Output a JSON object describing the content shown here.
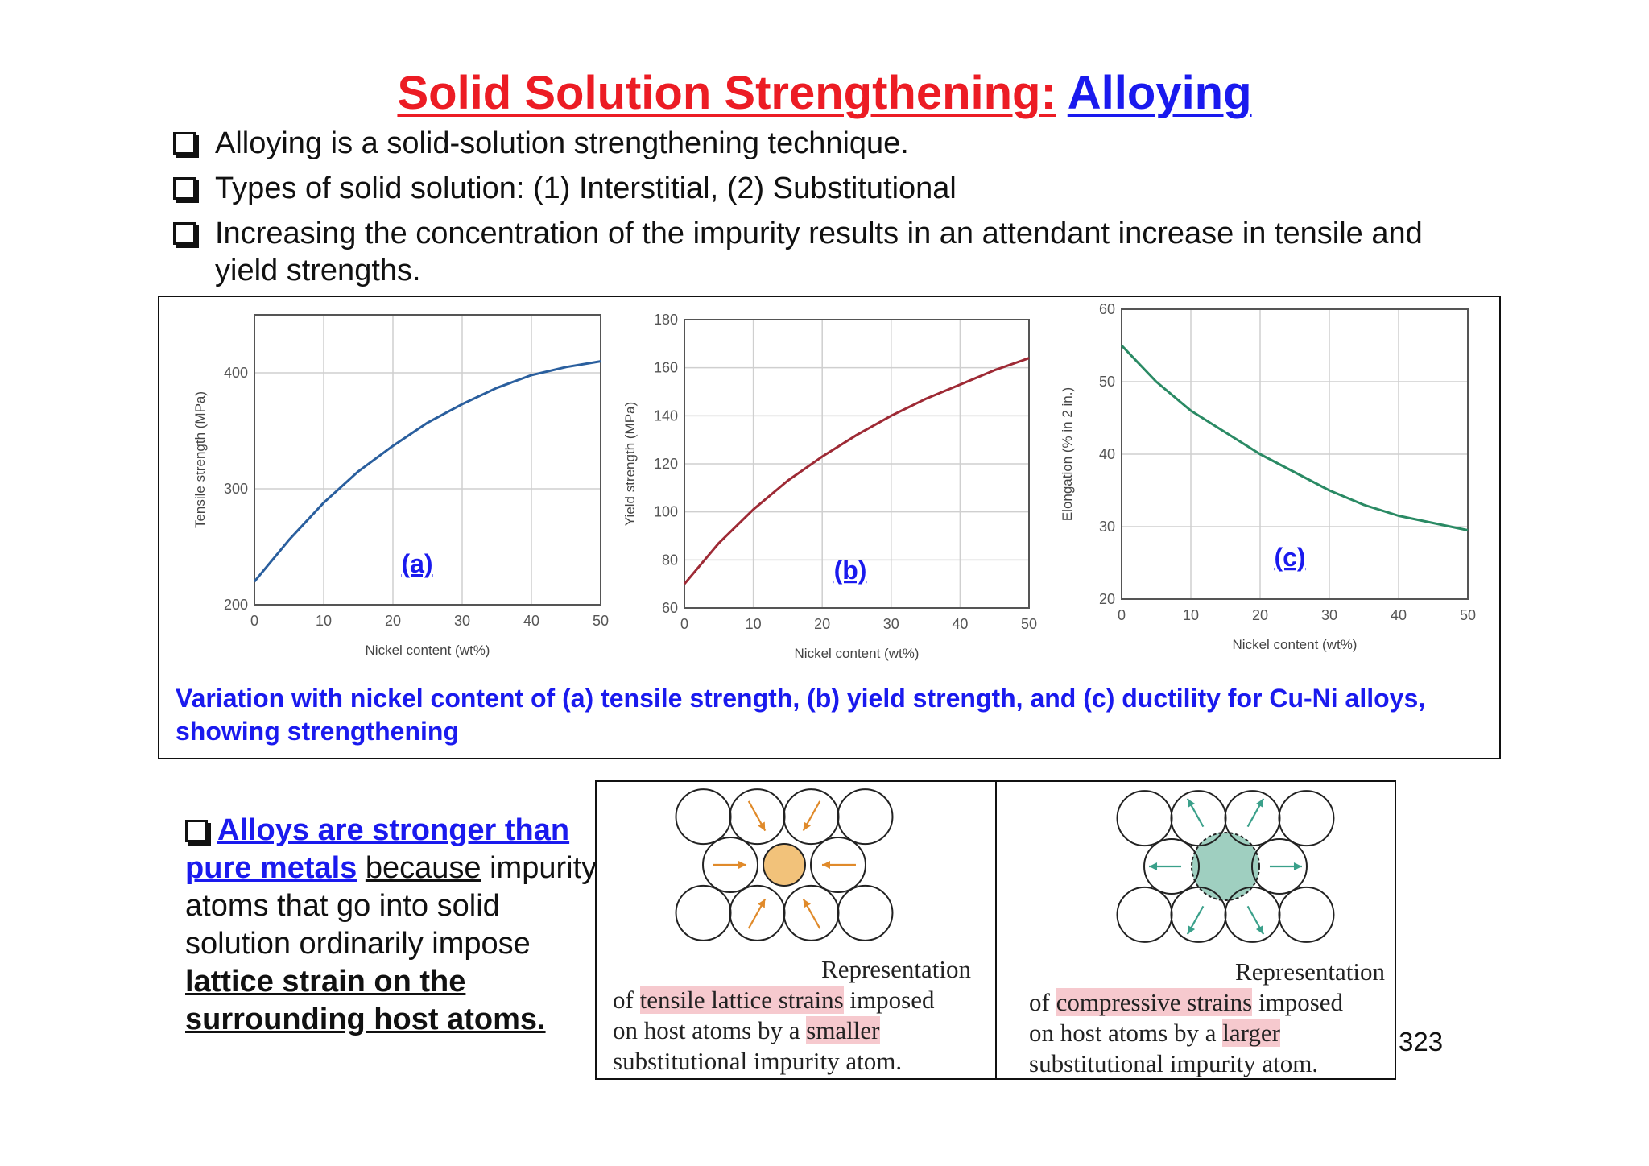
{
  "title": {
    "part1": "Solid Solution Strengthening:",
    "part2": "Alloying"
  },
  "bullets": [
    "Alloying is a solid-solution strengthening technique.",
    "Types of solid solution: (1) Interstitial, (2) Substitutional",
    "Increasing the concentration of the impurity results in an attendant increase in tensile and yield strengths."
  ],
  "figure": {
    "caption": "Variation with nickel content of (a) tensile strength, (b) yield strength, and (c) ductility for Cu-Ni alloys, showing strengthening"
  },
  "chart_data": [
    {
      "type": "line",
      "panel_label": "(a)",
      "xlabel": "Nickel content (wt%)",
      "ylabel": "Tensile strength (MPa)",
      "xlim": [
        0,
        50
      ],
      "ylim": [
        200,
        450
      ],
      "xticks": [
        0,
        10,
        20,
        30,
        40,
        50
      ],
      "yticks": [
        200,
        300,
        400
      ],
      "color": "#2a5f9e",
      "x": [
        0,
        5,
        10,
        15,
        20,
        25,
        30,
        35,
        40,
        45,
        50
      ],
      "y": [
        220,
        256,
        288,
        315,
        337,
        357,
        373,
        387,
        398,
        405,
        410
      ]
    },
    {
      "type": "line",
      "panel_label": "(b)",
      "xlabel": "Nickel content (wt%)",
      "ylabel": "Yield strength (MPa)",
      "xlim": [
        0,
        50
      ],
      "ylim": [
        60,
        180
      ],
      "xticks": [
        0,
        10,
        20,
        30,
        40,
        50
      ],
      "yticks": [
        60,
        80,
        100,
        120,
        140,
        160,
        180
      ],
      "color": "#9e2a35",
      "x": [
        0,
        5,
        10,
        15,
        20,
        25,
        30,
        35,
        40,
        45,
        50
      ],
      "y": [
        70,
        87,
        101,
        113,
        123,
        132,
        140,
        147,
        153,
        159,
        164
      ]
    },
    {
      "type": "line",
      "panel_label": "(c)",
      "xlabel": "Nickel content (wt%)",
      "ylabel": "Elongation (% in 2 in.)",
      "xlim": [
        0,
        50
      ],
      "ylim": [
        20,
        60
      ],
      "xticks": [
        0,
        10,
        20,
        30,
        40,
        50
      ],
      "yticks": [
        20,
        30,
        40,
        50,
        60
      ],
      "color": "#2a8a64",
      "x": [
        0,
        5,
        10,
        15,
        20,
        25,
        30,
        35,
        40,
        45,
        50
      ],
      "y": [
        55,
        50,
        46,
        43,
        40,
        37.5,
        35,
        33,
        31.5,
        30.5,
        29.5
      ]
    }
  ],
  "lower": {
    "text_blue": "Alloys are stronger than pure metals",
    "text_because": "because",
    "text_plain": "impurity atoms that go into solid solution ordinarily impose",
    "text_bold": "lattice strain on the surrounding host atoms."
  },
  "strain_tensile": {
    "line1": "Representation",
    "of": "of",
    "hl1": "tensile lattice strains",
    "imposed": "imposed",
    "line3a": "on host atoms by a",
    "hl2": "smaller",
    "line4": "substitutional impurity atom."
  },
  "strain_compressive": {
    "line1": "Representation",
    "of": "of",
    "hl1": "compressive strains",
    "imposed": "imposed",
    "line3a": "on host atoms by a",
    "hl2": "larger",
    "line4": "substitutional impurity atom."
  },
  "colors": {
    "title_red": "#ec1c24",
    "title_blue": "#1a1aee",
    "small_atom": "#f2c27a",
    "large_atom": "#9fcfc0",
    "arrow_orange": "#e08a2a",
    "arrow_teal": "#3aa08a",
    "highlight": "#f6c9ce"
  },
  "page_number": "323"
}
